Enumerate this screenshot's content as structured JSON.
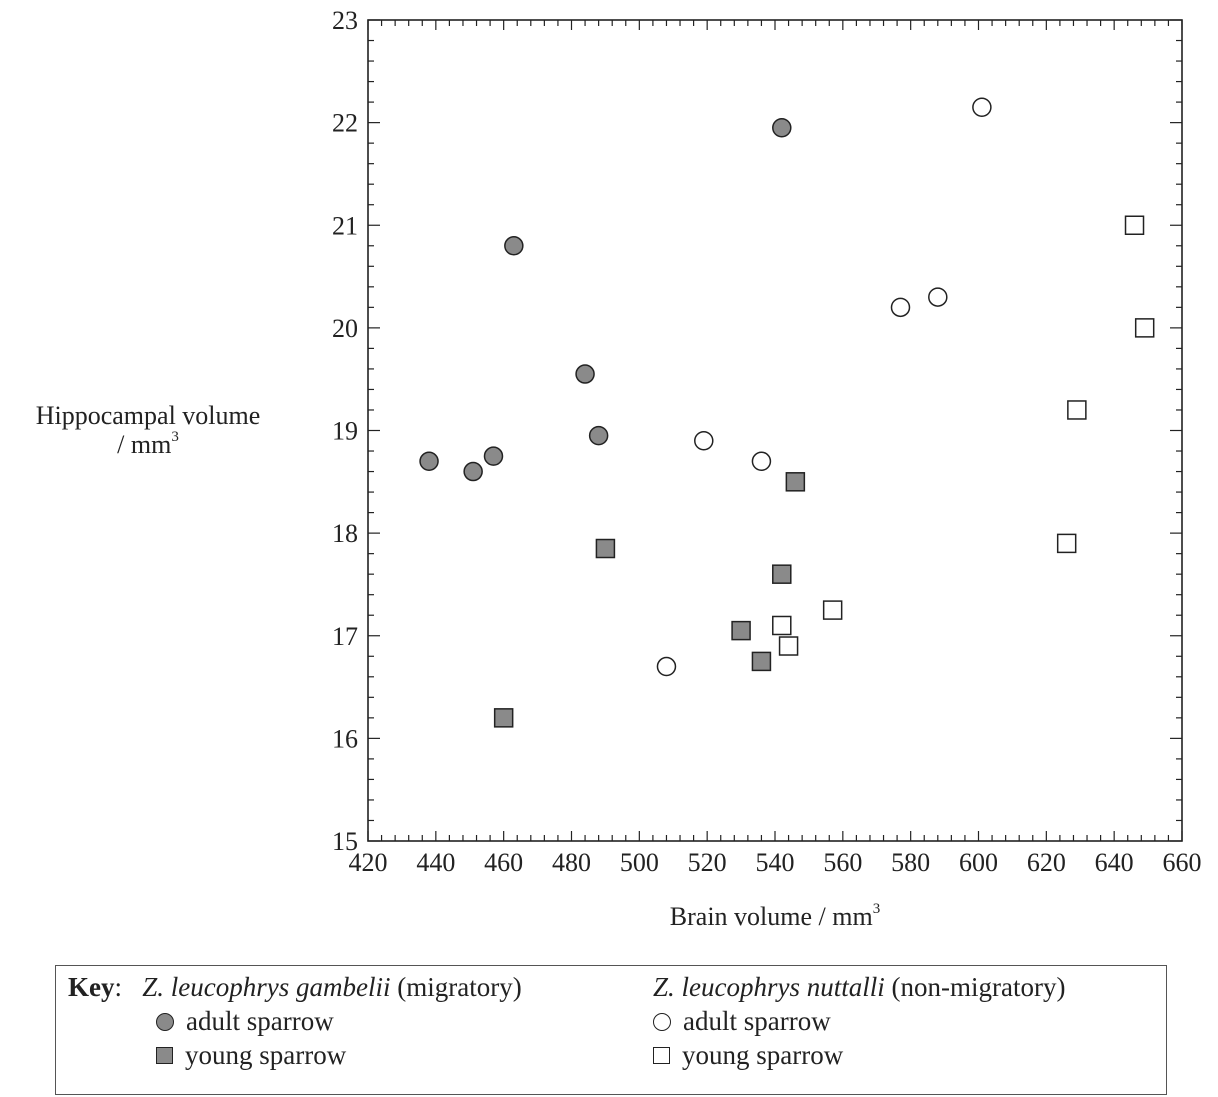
{
  "chart_data": {
    "type": "scatter",
    "xlabel": "Brain volume / mm",
    "xlabel_sup": "3",
    "ylabel_line1": "Hippocampal volume",
    "ylabel_line2": "/ mm",
    "ylabel_sup": "3",
    "xlim": [
      420,
      660
    ],
    "ylim": [
      15,
      23
    ],
    "xticks": [
      "420",
      "440",
      "460",
      "480",
      "500",
      "520",
      "540",
      "560",
      "580",
      "600",
      "620",
      "640",
      "660"
    ],
    "yticks": [
      "15",
      "16",
      "17",
      "18",
      "19",
      "20",
      "21",
      "22",
      "23"
    ],
    "grid": false,
    "series": [
      {
        "name": "adult sparrow",
        "group": "Z. leucophrys gambelii (migratory)",
        "marker": "circle",
        "fill": "#8a8a8a",
        "points": [
          [
            438,
            18.7
          ],
          [
            451,
            18.6
          ],
          [
            457,
            18.75
          ],
          [
            463,
            20.8
          ],
          [
            484,
            19.55
          ],
          [
            488,
            18.95
          ],
          [
            542,
            21.95
          ]
        ]
      },
      {
        "name": "young sparrow",
        "group": "Z. leucophrys gambelii (migratory)",
        "marker": "square",
        "fill": "#8a8a8a",
        "points": [
          [
            460,
            16.2
          ],
          [
            490,
            17.85
          ],
          [
            530,
            17.05
          ],
          [
            536,
            16.75
          ],
          [
            542,
            17.6
          ],
          [
            546,
            18.5
          ]
        ]
      },
      {
        "name": "adult sparrow",
        "group": "Z. leucophrys nuttalli (non-migratory)",
        "marker": "circle",
        "fill": "#ffffff",
        "points": [
          [
            508,
            16.7
          ],
          [
            519,
            18.9
          ],
          [
            536,
            18.7
          ],
          [
            577,
            20.2
          ],
          [
            588,
            20.3
          ],
          [
            601,
            22.15
          ]
        ]
      },
      {
        "name": "young sparrow",
        "group": "Z. leucophrys nuttalli (non-migratory)",
        "marker": "square",
        "fill": "#ffffff",
        "points": [
          [
            542,
            17.1
          ],
          [
            544,
            16.9
          ],
          [
            557,
            17.25
          ],
          [
            626,
            17.9
          ],
          [
            629,
            19.2
          ],
          [
            646,
            21.0
          ],
          [
            649,
            20.0
          ]
        ]
      }
    ]
  },
  "key": {
    "label": "Key",
    "colon": ":",
    "group1_species": "Z. leucophrys gambelii",
    "group1_note": "(migratory)",
    "group1_adult": "adult sparrow",
    "group1_young": "young sparrow",
    "group2_species": "Z. leucophrys nuttalli",
    "group2_note": "(non-migratory)",
    "group2_adult": "adult sparrow",
    "group2_young": "young sparrow"
  }
}
